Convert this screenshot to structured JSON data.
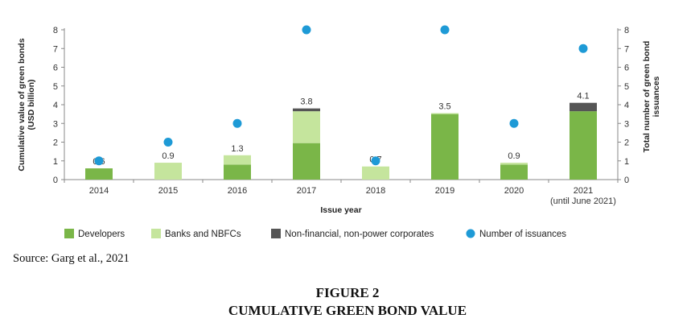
{
  "chart_data": {
    "type": "bar",
    "stacked": true,
    "categories": [
      "2014",
      "2015",
      "2016",
      "2017",
      "2018",
      "2019",
      "2020",
      "2021"
    ],
    "category_sublabels": [
      "",
      "",
      "",
      "",
      "",
      "",
      "",
      "(until June 2021)"
    ],
    "series": [
      {
        "name": "Developers",
        "color": "#7ab648",
        "values": [
          0.6,
          0.0,
          0.8,
          1.95,
          0.0,
          3.5,
          0.8,
          3.65
        ]
      },
      {
        "name": "Banks and NBFCs",
        "color": "#c5e59d",
        "values": [
          0.0,
          0.9,
          0.5,
          1.7,
          0.7,
          0.05,
          0.1,
          0.0
        ]
      },
      {
        "name": "Non-financial, non-power corporates",
        "color": "#555555",
        "values": [
          0.0,
          0.0,
          0.0,
          0.15,
          0.0,
          0.0,
          0.0,
          0.45
        ]
      }
    ],
    "totals": [
      "0.6",
      "0.9",
      "1.3",
      "3.8",
      "0.7",
      "3.5",
      "0.9",
      "4.1"
    ],
    "issuances": {
      "name": "Number of issuances",
      "color": "#1e9ad6",
      "values": [
        1,
        2,
        3,
        8,
        1,
        8,
        3,
        7
      ]
    },
    "xlabel": "Issue year",
    "ylabel": [
      "Cumulative value of green bonds",
      "(USD billion)"
    ],
    "y2label": [
      "Total number of green bond",
      "issuances"
    ],
    "ylim": [
      0,
      8
    ],
    "y2lim": [
      0,
      8
    ],
    "yticks": [
      0,
      1,
      2,
      3,
      4,
      5,
      6,
      7,
      8
    ],
    "grid": false,
    "legend_position": "bottom"
  },
  "source": "Source: Garg et al., 2021",
  "figure": {
    "number": "FIGURE 2",
    "caption": "CUMULATIVE GREEN BOND VALUE"
  }
}
